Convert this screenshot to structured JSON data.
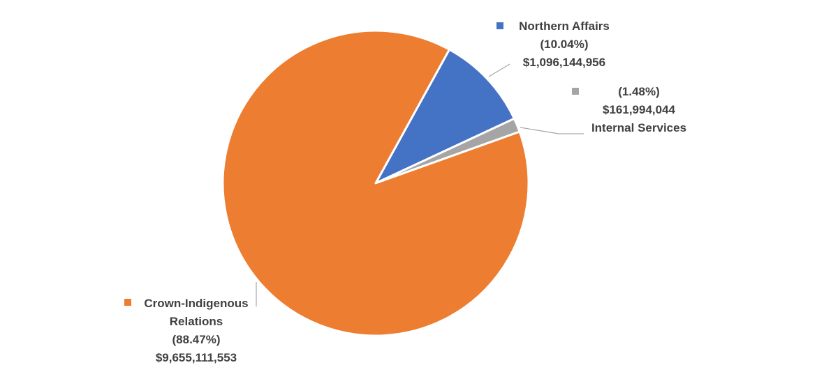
{
  "chart_data": {
    "type": "pie",
    "labels": [
      "Northern Affairs",
      "Internal Services",
      "Crown-Indigenous Relations"
    ],
    "values": [
      10.04,
      1.48,
      88.47
    ],
    "value_labels": [
      "(10.04%)",
      "(1.48%)",
      "(88.47%)"
    ],
    "amounts": [
      1096144956,
      161994044,
      9655111553
    ],
    "amount_labels": [
      "$1,096,144,956",
      "$161,994,044",
      "$9,655,111,553"
    ],
    "colors": [
      "#4472c4",
      "#a5a5a5",
      "#ed7d31"
    ]
  }
}
